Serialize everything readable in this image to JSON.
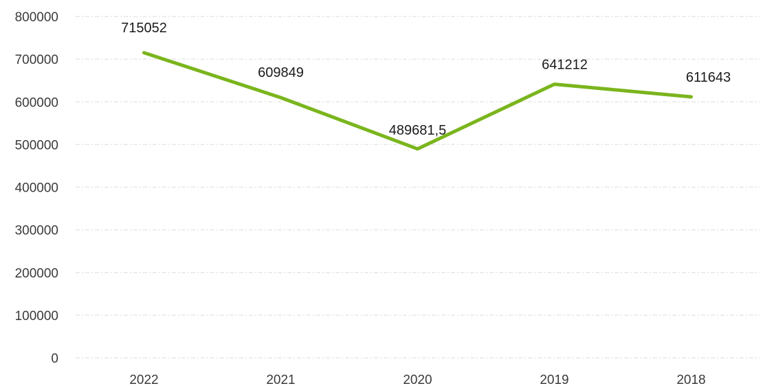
{
  "chart_data": {
    "type": "line",
    "title": "",
    "xlabel": "",
    "ylabel": "",
    "categories": [
      "2022",
      "2021",
      "2020",
      "2019",
      "2018"
    ],
    "series": [
      {
        "values": [
          715052,
          609849,
          489681.5,
          641212,
          611643
        ],
        "data_labels": [
          "715052",
          "609849",
          "489681,5",
          "641212",
          "611643"
        ],
        "color": "#7ab51d"
      }
    ],
    "ylim": [
      0,
      800000
    ],
    "yticks": [
      0,
      100000,
      200000,
      300000,
      400000,
      500000,
      600000,
      700000,
      800000
    ],
    "ytick_labels": [
      "0",
      "100000",
      "200000",
      "300000",
      "400000",
      "500000",
      "600000",
      "700000",
      "800000"
    ],
    "grid": true,
    "legend": "none"
  }
}
